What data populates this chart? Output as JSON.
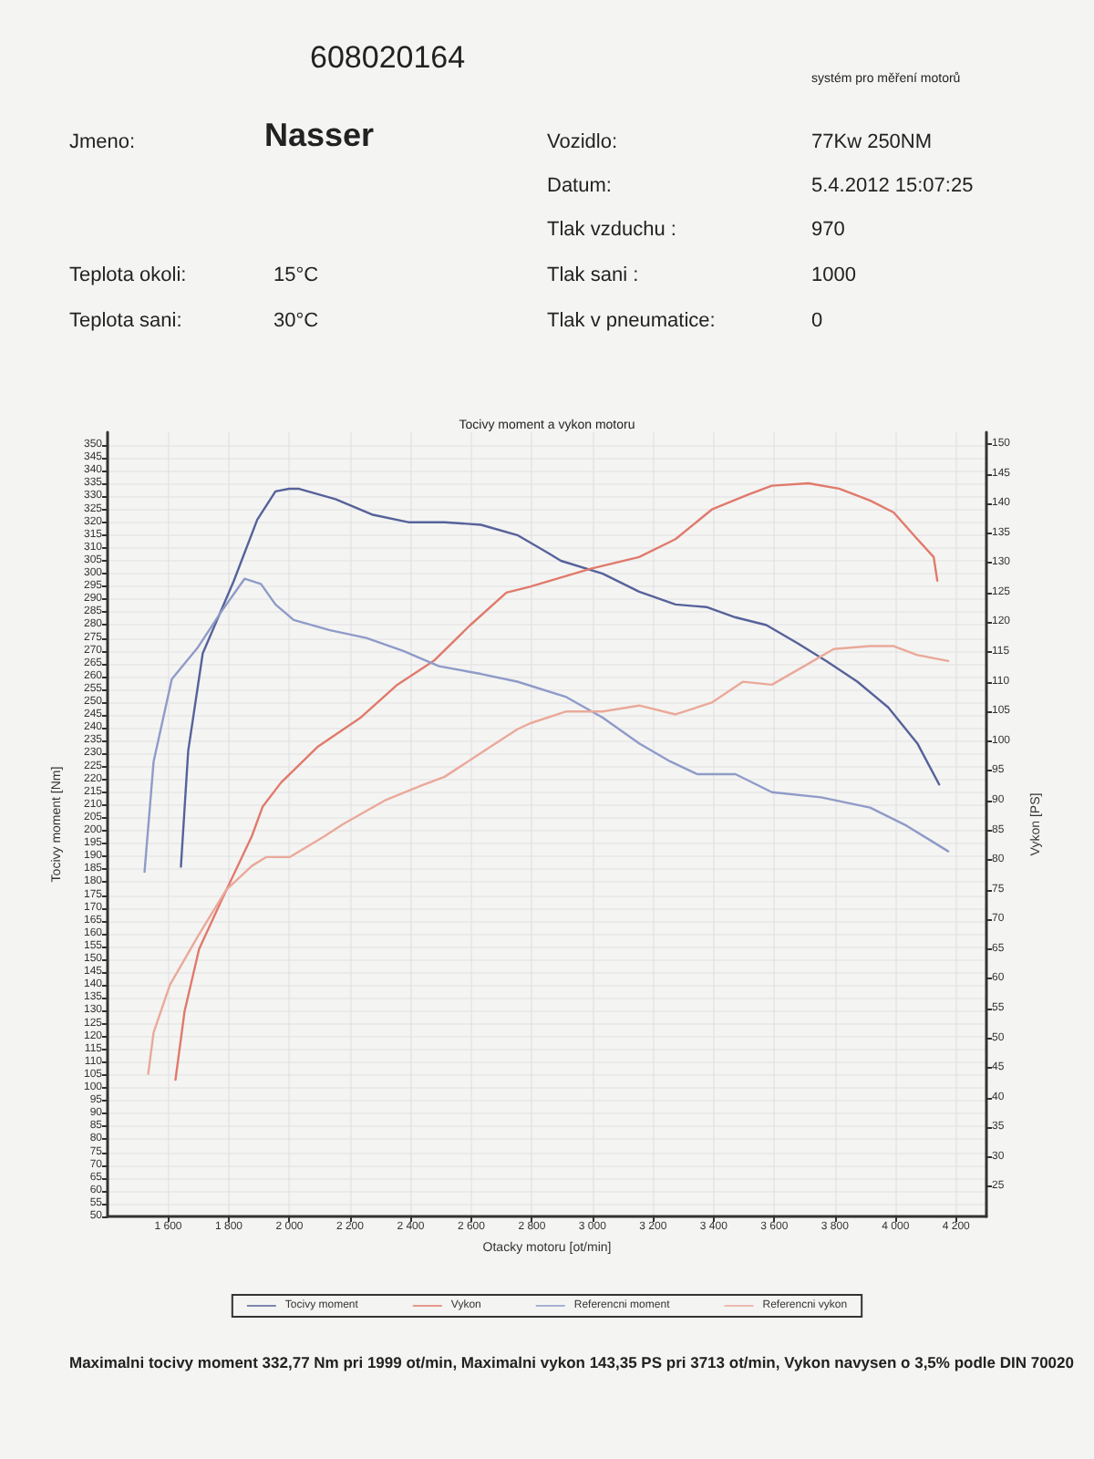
{
  "chart_data": {
    "type": "line",
    "title": "Tocivy moment a vykon motoru",
    "xlabel": "Otacky motoru [ot/min]",
    "ylabel": "Tocivy moment [Nm]",
    "y2label": "Vykon [PS]",
    "annotations": [
      "608020164",
      "systém pro měření motorů",
      "Jmeno:",
      "Nasser",
      "Vozidlo:",
      "77Kw 250NM",
      "Datum:",
      "5.4.2012 15:07:25",
      "Tlak vzduchu :",
      "970",
      "Teplota okoli:",
      "15°C",
      "Tlak sani :",
      "1000",
      "Teplota sani:",
      "30°C",
      "Tlak v pneumatice:",
      "0",
      "Maximalni tocivy moment 332,77 Nm pri 1999 ot/min,  Maximalni vykon 143,35 PS pri 3713 ot/min,  Vykon navysen o 3,5% podle DIN 70020"
    ],
    "series": [
      {
        "name": "Tocivy moment",
        "color": "#56629a",
        "x": [
          1642,
          1666,
          1714,
          1816,
          1894,
          1954,
          1999,
          2032,
          2152,
          2272,
          2392,
          2512,
          2632,
          2752,
          2854,
          2896,
          3034,
          3154,
          3274,
          3376,
          3472,
          3574,
          3676,
          3772,
          3874,
          3976,
          4072,
          4144
        ],
        "values": [
          186,
          231,
          269,
          297,
          321,
          332,
          333,
          333,
          329,
          323,
          320,
          320,
          319,
          315,
          308,
          305,
          300,
          293,
          288,
          287,
          283,
          280,
          273,
          266,
          258,
          248,
          234,
          218
        ]
      },
      {
        "name": "Vykon",
        "color": "#e07a6c",
        "axis": "y2",
        "x": [
          1624,
          1654,
          1702,
          1774,
          1876,
          1912,
          1972,
          2092,
          2236,
          2356,
          2476,
          2596,
          2716,
          2794,
          2992,
          3154,
          3274,
          3394,
          3514,
          3592,
          3713,
          3814,
          3916,
          3994,
          4072,
          4126,
          4138
        ],
        "values": [
          43,
          54.5,
          65,
          73,
          84,
          89,
          93,
          99,
          104,
          109.5,
          113.5,
          119.5,
          125,
          126,
          129,
          131,
          134,
          139,
          141.5,
          143,
          143.4,
          142.5,
          140.5,
          138.5,
          134,
          131,
          127
        ]
      },
      {
        "name": "Referencni moment",
        "color": "#8f9bc8",
        "x": [
          1522,
          1552,
          1612,
          1696,
          1774,
          1852,
          1906,
          1954,
          2014,
          2134,
          2254,
          2374,
          2494,
          2632,
          2752,
          2914,
          3034,
          3154,
          3256,
          3346,
          3472,
          3592,
          3754,
          3916,
          4036,
          4174
        ],
        "values": [
          184,
          227,
          259,
          271,
          285,
          298,
          296,
          288,
          282,
          278,
          275,
          270,
          264,
          261,
          258,
          252,
          244,
          234,
          227,
          222,
          222,
          215,
          213,
          209,
          202,
          192
        ]
      },
      {
        "name": "Referencni vykon",
        "color": "#eaa99a",
        "axis": "y2",
        "x": [
          1534,
          1552,
          1606,
          1696,
          1792,
          1876,
          1924,
          2002,
          2116,
          2176,
          2314,
          2434,
          2512,
          2632,
          2752,
          2794,
          2914,
          3034,
          3154,
          3274,
          3394,
          3496,
          3592,
          3694,
          3796,
          3916,
          3994,
          4072,
          4174
        ],
        "values": [
          44,
          51,
          59,
          67,
          75,
          79,
          80.5,
          80.5,
          84,
          86,
          90,
          92.5,
          94,
          98,
          102,
          103,
          105,
          105,
          106,
          104.5,
          106.5,
          110,
          109.5,
          112.5,
          115.5,
          116,
          116,
          114.5,
          113.5
        ]
      }
    ],
    "xlim": [
      1400,
      4300
    ],
    "xticks": [
      {
        "value": 1600,
        "label": "1 600"
      },
      {
        "value": 1800,
        "label": "1 800"
      },
      {
        "value": 2000,
        "label": "2 000"
      },
      {
        "value": 2200,
        "label": "2 200"
      },
      {
        "value": 2400,
        "label": "2 400"
      },
      {
        "value": 2600,
        "label": "2 600"
      },
      {
        "value": 2800,
        "label": "2 800"
      },
      {
        "value": 3000,
        "label": "3 000"
      },
      {
        "value": 3200,
        "label": "3 200"
      },
      {
        "value": 3400,
        "label": "3 400"
      },
      {
        "value": 3600,
        "label": "3 600"
      },
      {
        "value": 3800,
        "label": "3 800"
      },
      {
        "value": 4000,
        "label": "4 000"
      },
      {
        "value": 4200,
        "label": "4 200"
      }
    ],
    "ylim": [
      50,
      355
    ],
    "yticks": [
      50,
      55,
      60,
      65,
      70,
      75,
      80,
      85,
      90,
      95,
      100,
      105,
      110,
      115,
      120,
      125,
      130,
      135,
      140,
      145,
      150,
      155,
      160,
      165,
      170,
      175,
      180,
      185,
      190,
      195,
      200,
      205,
      210,
      215,
      220,
      225,
      230,
      235,
      240,
      245,
      250,
      255,
      260,
      265,
      270,
      275,
      280,
      285,
      290,
      295,
      300,
      305,
      310,
      315,
      320,
      325,
      330,
      335,
      340,
      345,
      350
    ],
    "y2lim": [
      20,
      152
    ],
    "y2ticks": [
      25,
      30,
      35,
      40,
      45,
      50,
      55,
      60,
      65,
      70,
      75,
      80,
      85,
      90,
      95,
      100,
      105,
      110,
      115,
      120,
      125,
      130,
      135,
      140,
      145,
      150
    ],
    "grid": true,
    "legend": "bottom",
    "marker": "none",
    "line_style": "solid"
  }
}
